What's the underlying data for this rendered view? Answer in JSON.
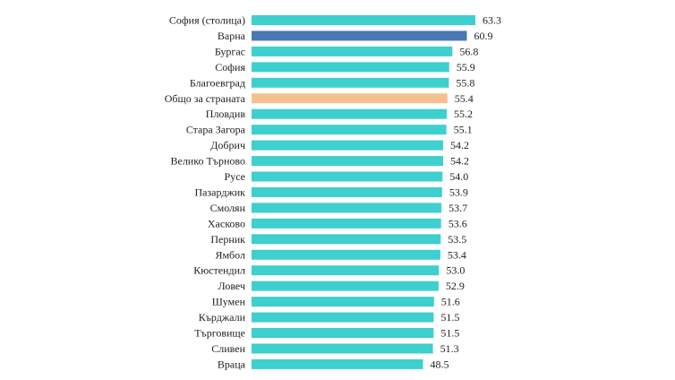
{
  "chart_data": {
    "type": "bar",
    "orientation": "horizontal",
    "title": "",
    "xlabel": "",
    "ylabel": "",
    "categories": [
      "София (столица)",
      "Варна",
      "Бургас",
      "София",
      "Благоевград",
      "Общо за страната",
      "Пловдив",
      "Стара Загора",
      "Добрич",
      "Велико Търново",
      "Русе",
      "Пазарджик",
      "Смолян",
      "Хасково",
      "Перник",
      "Ямбол",
      "Кюстендил",
      "Ловеч",
      "Шумен",
      "Кърджали",
      "Търговище",
      "Сливен",
      "Враца"
    ],
    "values": [
      63.3,
      60.9,
      56.8,
      55.9,
      55.8,
      55.4,
      55.2,
      55.1,
      54.2,
      54.2,
      54.0,
      53.9,
      53.7,
      53.6,
      53.5,
      53.4,
      53.0,
      52.9,
      51.6,
      51.5,
      51.5,
      51.3,
      48.5
    ],
    "value_labels": [
      "63.3",
      "60.9",
      "56.8",
      "55.9",
      "55.8",
      "55.4",
      "55.2",
      "55.1",
      "54.2",
      "54.2",
      "54.0",
      "53.9",
      "53.7",
      "53.6",
      "53.5",
      "53.4",
      "53.0",
      "52.9",
      "51.6",
      "51.5",
      "51.5",
      "51.3",
      "48.5"
    ],
    "xlim": [
      0,
      63.3
    ],
    "grid": false,
    "legend": "none",
    "colors": {
      "default": "#3ecfcf",
      "highlight": "#4a78b5",
      "total": "#f6c08e"
    },
    "highlight_index": 1,
    "total_index": 5
  }
}
